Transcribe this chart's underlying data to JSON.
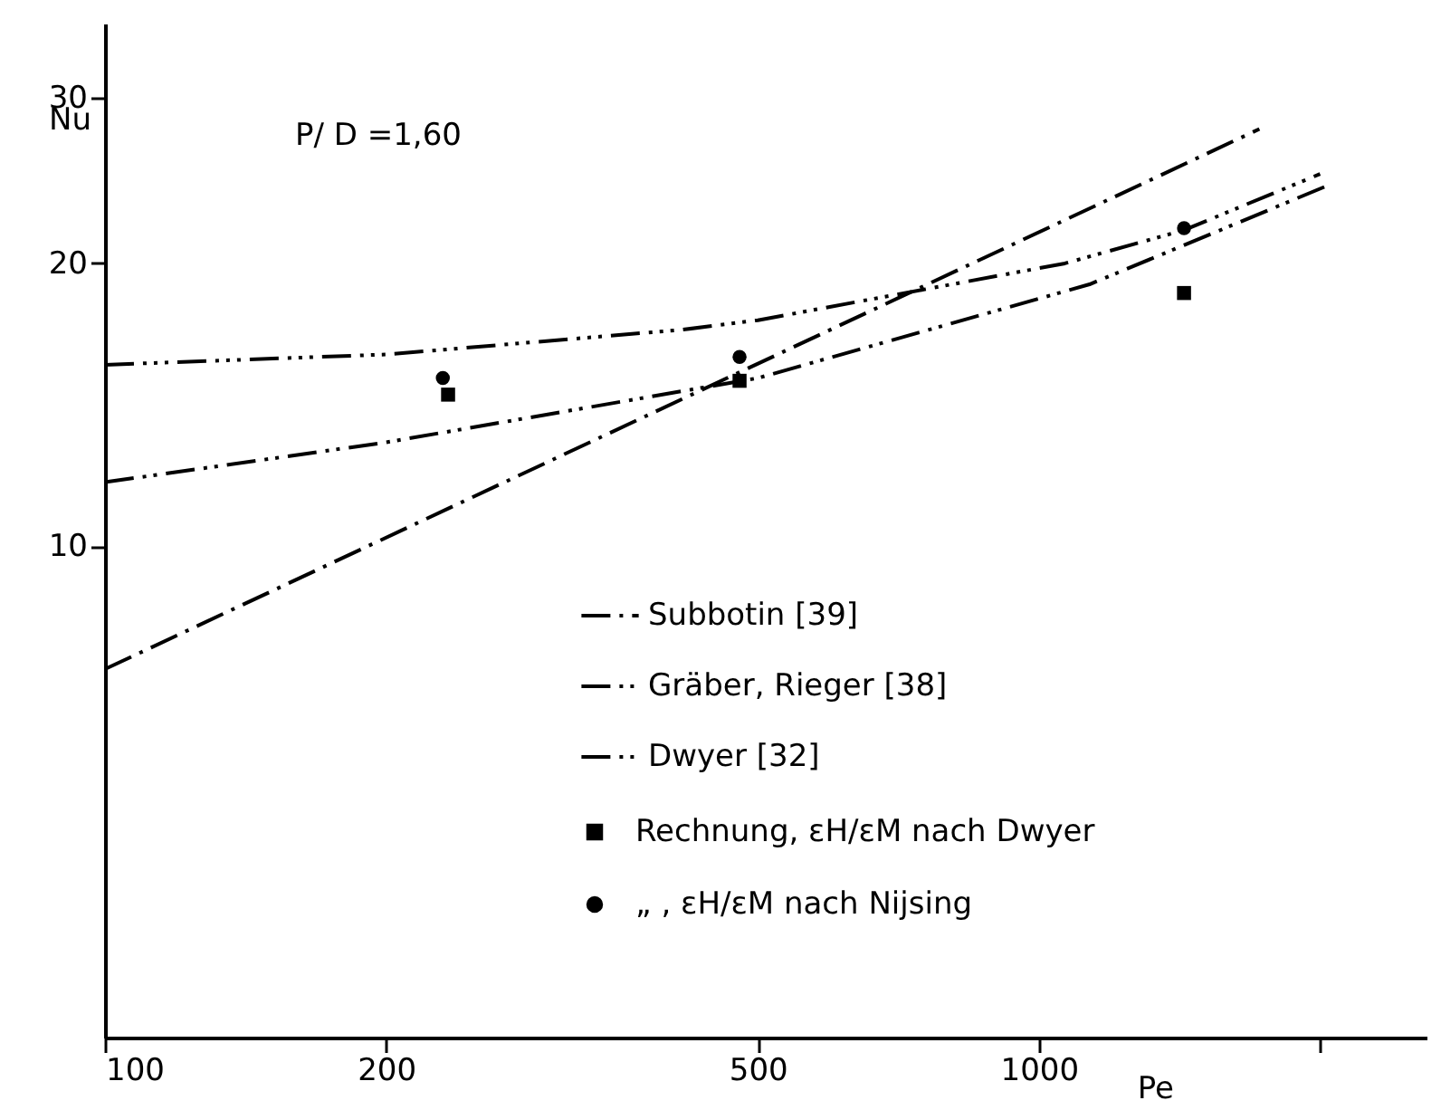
{
  "chart_data": {
    "type": "line",
    "xlabel": "Pe",
    "ylabel": "Nu",
    "log": "xy",
    "xlim": [
      100,
      2600
    ],
    "xticks": [
      100,
      200,
      500,
      1000,
      {
        "value": 2000,
        "label": null
      }
    ],
    "ylim": [
      3,
      36
    ],
    "yticks": [
      10,
      20,
      30
    ],
    "annotations": [
      "P/ D =1,60"
    ],
    "grid": false,
    "legend": "bottom right",
    "series": [
      {
        "name": "Subbotin [39]",
        "color": "#000000",
        "line_style": "dashed",
        "x": [
          100,
          1722
        ],
        "values": [
          7.4,
          27.8
        ]
      },
      {
        "name": "Gräber, Rieger [38]",
        "color": "#000000",
        "line_style": "dashed",
        "x": [
          100,
          200,
          500,
          1133,
          2037
        ],
        "values": [
          11.7,
          12.9,
          15.1,
          19.0,
          24.2
        ]
      },
      {
        "name": "Dwyer [32]",
        "color": "#000000",
        "line_style": "dashed",
        "x": [
          100,
          200,
          415,
          500,
          1066,
          1430,
          2000
        ],
        "values": [
          15.6,
          16.0,
          17.0,
          17.4,
          20.0,
          21.7,
          24.9
        ]
      },
      {
        "name": "Rechnung, εH/εM nach Dwyer",
        "color": "#000000",
        "type": "scatter",
        "marker": "square",
        "x": [
          233,
          478,
          1430
        ],
        "values": [
          14.5,
          15.0,
          18.6
        ]
      },
      {
        "name": "„ , εH/εM nach Nijsing",
        "color": "#000000",
        "type": "scatter",
        "marker": "circle",
        "x": [
          230,
          478,
          1430
        ],
        "values": [
          15.1,
          15.9,
          21.8
        ]
      }
    ]
  }
}
